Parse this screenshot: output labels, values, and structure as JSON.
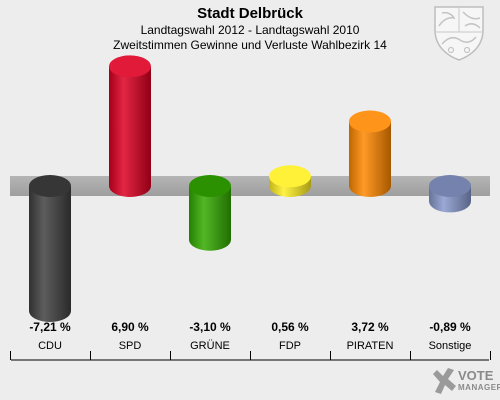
{
  "header": {
    "title": "Stadt Delbrück",
    "subtitle1": "Landtagswahl 2012 - Landtagswahl 2010",
    "subtitle2": "Zweitstimmen Gewinne und Verluste Wahlbezirk 14"
  },
  "chart_data": {
    "type": "bar",
    "categories": [
      "CDU",
      "SPD",
      "GRÜNE",
      "FDP",
      "PIRATEN",
      "Sonstige"
    ],
    "values": [
      -7.21,
      6.9,
      -3.1,
      0.56,
      3.72,
      -0.89
    ],
    "value_labels": [
      "-7,21 %",
      "6,90 %",
      "-3,10 %",
      "0,56 %",
      "3,72 %",
      "-0,89 %"
    ],
    "colors": [
      "#404040",
      "#dd0022",
      "#33aa00",
      "#ffee22",
      "#ff8800",
      "#8899cc"
    ],
    "ylim": [
      -7.21,
      6.9
    ]
  },
  "watermark": {
    "line1": "VOTE",
    "line2": "MANAGER",
    "icon": "vote-manager-logo-icon"
  },
  "crest_icon": "nrw-coat-of-arms-icon"
}
